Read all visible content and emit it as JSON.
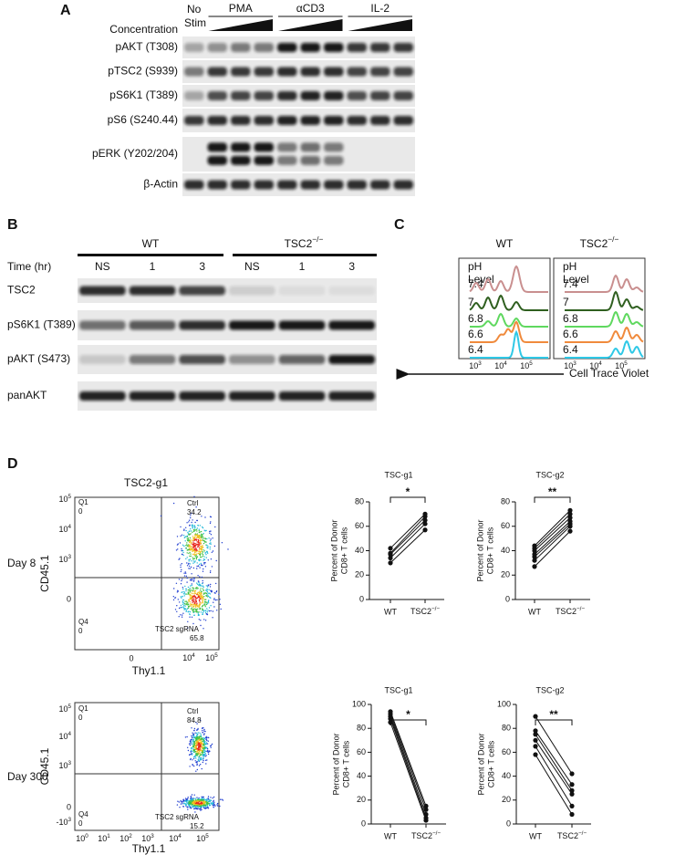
{
  "panel_a": {
    "label": "A",
    "concentration": "Concentration",
    "no_stim": [
      "No",
      "Stim"
    ],
    "treatments": [
      "PMA",
      "αCD3",
      "IL-2"
    ],
    "rows": [
      "pAKT (T308)",
      "pTSC2 (S939)",
      "pS6K1 (T389)",
      "pS6 (S240.44)",
      "pERK (Y202/204)",
      "β-Actin"
    ]
  },
  "panel_b": {
    "label": "B",
    "groups": [
      "WT",
      {
        "base": "TSC2",
        "sup": "−/−"
      }
    ],
    "time_label": "Time (hr)",
    "lanes": [
      "NS",
      "1",
      "3",
      "NS",
      "1",
      "3"
    ],
    "rows": [
      "TSC2",
      "pS6K1 (T389)",
      "pAKT (S473)",
      "panAKT"
    ]
  },
  "panel_c": {
    "label": "C",
    "groups": [
      "WT",
      {
        "base": "TSC2",
        "sup": "−/−"
      }
    ],
    "legend_title": [
      "pH",
      "Level"
    ],
    "levels": [
      "7.4",
      "7",
      "6.8",
      "6.6",
      "6.4"
    ],
    "colors": [
      "#c98f8f",
      "#2f5f1f",
      "#5fd85f",
      "#f08a3c",
      "#2ec8e6"
    ],
    "xticks": [
      {
        "base": "10",
        "sup": "3"
      },
      {
        "base": "10",
        "sup": "4"
      },
      {
        "base": "10",
        "sup": "5"
      }
    ],
    "xlabel": "Cell Trace Violet"
  },
  "panel_d": {
    "label": "D",
    "title": "TSC2-g1",
    "plots": [
      {
        "day": "Day 8",
        "ylabel": "CD45.1",
        "xlabel": "Thy1.1",
        "q1": [
          "Q1",
          "0"
        ],
        "q2": [
          "Ctrl",
          "34.2"
        ],
        "q4": [
          "Q4",
          "0"
        ],
        "q3": [
          "TSC2 sgRNA",
          "65.8"
        ],
        "yticks": [
          {
            "base": "10",
            "sup": "5"
          },
          {
            "base": "10",
            "sup": "4"
          },
          {
            "base": "10",
            "sup": "3"
          },
          "0"
        ],
        "xticks": [
          "0",
          {
            "base": "10",
            "sup": "4"
          },
          {
            "base": "10",
            "sup": "5"
          }
        ]
      },
      {
        "day": "Day 300",
        "ylabel": "CD45.1",
        "xlabel": "Thy1.1",
        "q1": [
          "Q1",
          "0"
        ],
        "q2": [
          "Ctrl",
          "84.8"
        ],
        "q4": [
          "Q4",
          "0"
        ],
        "q3": [
          "TSC2 sgRNA",
          "15.2"
        ],
        "yticks": [
          {
            "base": "10",
            "sup": "5"
          },
          {
            "base": "10",
            "sup": "4"
          },
          {
            "base": "10",
            "sup": "3"
          },
          "0",
          {
            "base": "-10",
            "sup": "3"
          }
        ],
        "xticks": [
          {
            "base": "10",
            "sup": "0"
          },
          {
            "base": "10",
            "sup": "1"
          },
          {
            "base": "10",
            "sup": "2"
          },
          {
            "base": "10",
            "sup": "3"
          },
          {
            "base": "10",
            "sup": "4"
          },
          {
            "base": "10",
            "sup": "5"
          }
        ]
      }
    ]
  },
  "chart_data": [
    {
      "type": "paired",
      "title": "TSC-g1",
      "ylabel": [
        "Percent of Donor",
        "CD8+ T cells"
      ],
      "categories": [
        "WT",
        {
          "base": "TSC2",
          "sup": "−/−"
        }
      ],
      "values": [
        [
          30,
          34,
          37,
          38,
          42
        ],
        [
          57,
          62,
          65,
          68,
          70
        ]
      ],
      "significance": "*",
      "ylim": [
        0,
        80
      ],
      "yticks": [
        0,
        20,
        40,
        60,
        80
      ]
    },
    {
      "type": "paired",
      "title": "TSC-g2",
      "ylabel": [
        "Percent of Donor",
        "CD8+ T cells"
      ],
      "categories": [
        "WT",
        {
          "base": "TSC2",
          "sup": "−/−"
        }
      ],
      "values": [
        [
          27,
          32,
          35,
          37,
          40,
          42,
          44
        ],
        [
          56,
          60,
          62,
          64,
          67,
          70,
          73
        ]
      ],
      "significance": "**",
      "ylim": [
        0,
        80
      ],
      "yticks": [
        0,
        20,
        40,
        60,
        80
      ]
    },
    {
      "type": "paired",
      "title": "TSC-g1",
      "ylabel": [
        "Percent of Donor",
        "CD8+ T cells"
      ],
      "categories": [
        "WT",
        {
          "base": "TSC2",
          "sup": "−/−"
        }
      ],
      "values": [
        [
          85,
          88,
          90,
          92,
          94
        ],
        [
          3,
          5,
          8,
          12,
          15
        ]
      ],
      "significance": "*",
      "ylim": [
        0,
        100
      ],
      "yticks": [
        0,
        20,
        40,
        60,
        80,
        100
      ]
    },
    {
      "type": "paired",
      "title": "TSC-g2",
      "ylabel": [
        "Percent of Donor",
        "CD8+ T cells"
      ],
      "categories": [
        "WT",
        {
          "base": "TSC2",
          "sup": "−/−"
        }
      ],
      "values": [
        [
          58,
          65,
          70,
          75,
          78,
          90
        ],
        [
          8,
          15,
          25,
          28,
          33,
          42
        ]
      ],
      "significance": "**",
      "ylim": [
        0,
        100
      ],
      "yticks": [
        0,
        20,
        40,
        60,
        80,
        100
      ]
    }
  ]
}
